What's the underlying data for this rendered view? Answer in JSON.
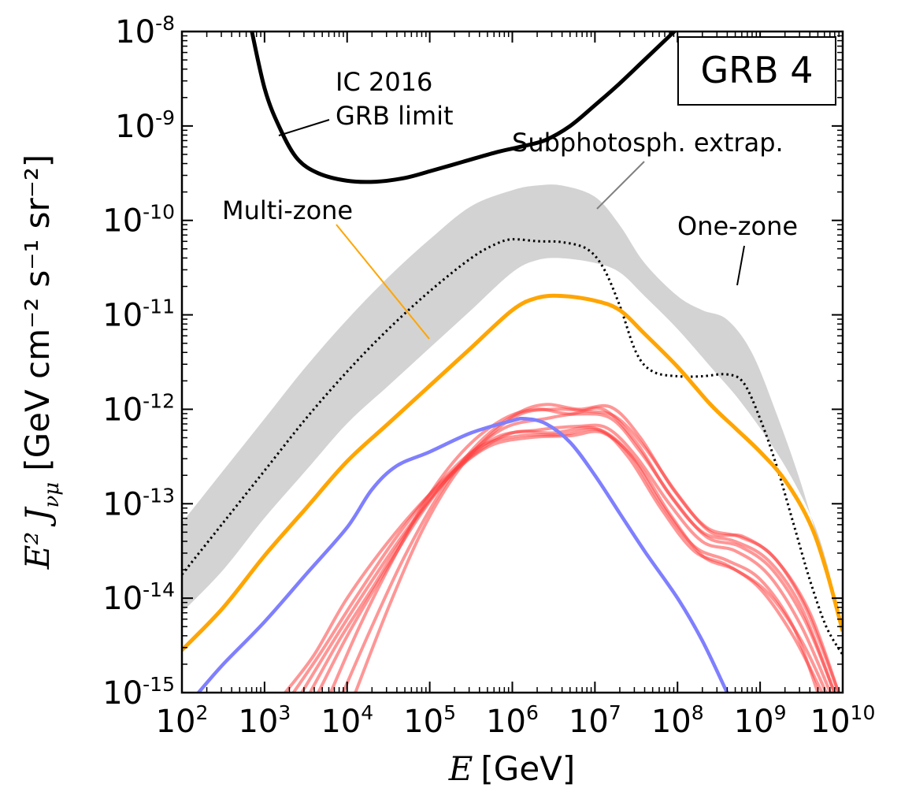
{
  "chart_data": {
    "type": "line",
    "title": "",
    "xscale": "log",
    "yscale": "log",
    "xlim": [
      100,
      10000000000
    ],
    "ylim": [
      1e-15,
      1e-08
    ],
    "xlabel": {
      "symbol": "E",
      "text": "[GeV]"
    },
    "ylabel": {
      "symbol": "E² J",
      "subscript": "νμ",
      "units": "[GeV cm⁻² s⁻¹ sr⁻²]"
    },
    "x_ticks": [
      {
        "value": 100,
        "base": "10",
        "exp": "2"
      },
      {
        "value": 1000,
        "base": "10",
        "exp": "3"
      },
      {
        "value": 10000,
        "base": "10",
        "exp": "4"
      },
      {
        "value": 100000,
        "base": "10",
        "exp": "5"
      },
      {
        "value": 1000000,
        "base": "10",
        "exp": "6"
      },
      {
        "value": 10000000,
        "base": "10",
        "exp": "7"
      },
      {
        "value": 100000000,
        "base": "10",
        "exp": "8"
      },
      {
        "value": 1000000000,
        "base": "10",
        "exp": "9"
      },
      {
        "value": 10000000000,
        "base": "10",
        "exp": "10"
      }
    ],
    "y_ticks": [
      {
        "value": 1e-08,
        "base": "10",
        "exp": "-8"
      },
      {
        "value": 1e-09,
        "base": "10",
        "exp": "-9"
      },
      {
        "value": 1e-10,
        "base": "10",
        "exp": "-10"
      },
      {
        "value": 1e-11,
        "base": "10",
        "exp": "-11"
      },
      {
        "value": 1e-12,
        "base": "10",
        "exp": "-12"
      },
      {
        "value": 1e-13,
        "base": "10",
        "exp": "-13"
      },
      {
        "value": 1e-14,
        "base": "10",
        "exp": "-14"
      },
      {
        "value": 1e-15,
        "base": "10",
        "exp": "-15"
      }
    ],
    "legend_box": {
      "text": "GRB 4",
      "placement": "top-right"
    },
    "annotations": {
      "ic_line1": "IC 2016",
      "ic_line2": "GRB limit",
      "subphoto": "Subphotosph. extrap.",
      "multizone": "Multi-zone",
      "onezone": "One-zone"
    },
    "colors": {
      "ic_limit": "#000000",
      "multizone": "#ffa500",
      "band": "#d3d3d3",
      "subphoto_text": "#808080",
      "blue": "#7f7fff",
      "red": "#ff4040",
      "onezone": "#000000"
    },
    "series": [
      {
        "name": "IC 2016 GRB limit",
        "style": "solid-black",
        "points": [
          [
            2.8,
            -7.8
          ],
          [
            3.0,
            -8.6
          ],
          [
            3.2,
            -9.05
          ],
          [
            3.4,
            -9.35
          ],
          [
            3.65,
            -9.5
          ],
          [
            4.0,
            -9.58
          ],
          [
            4.35,
            -9.59
          ],
          [
            4.7,
            -9.55
          ],
          [
            5.0,
            -9.48
          ],
          [
            5.4,
            -9.38
          ],
          [
            5.8,
            -9.28
          ],
          [
            6.1,
            -9.22
          ],
          [
            6.4,
            -9.15
          ],
          [
            6.7,
            -9.0
          ],
          [
            7.0,
            -8.78
          ],
          [
            7.3,
            -8.55
          ],
          [
            7.6,
            -8.3
          ],
          [
            7.9,
            -8.05
          ],
          [
            8.2,
            -7.8
          ]
        ]
      },
      {
        "name": "One-zone",
        "style": "dotted-black",
        "points": [
          [
            2.0,
            -13.75
          ],
          [
            2.5,
            -13.2
          ],
          [
            3.0,
            -12.65
          ],
          [
            3.5,
            -12.1
          ],
          [
            4.0,
            -11.6
          ],
          [
            4.5,
            -11.15
          ],
          [
            5.0,
            -10.75
          ],
          [
            5.5,
            -10.4
          ],
          [
            5.8,
            -10.25
          ],
          [
            6.0,
            -10.2
          ],
          [
            6.3,
            -10.22
          ],
          [
            6.6,
            -10.23
          ],
          [
            6.9,
            -10.3
          ],
          [
            7.1,
            -10.5
          ],
          [
            7.3,
            -10.9
          ],
          [
            7.5,
            -11.4
          ],
          [
            7.7,
            -11.6
          ],
          [
            8.0,
            -11.65
          ],
          [
            8.3,
            -11.65
          ],
          [
            8.6,
            -11.63
          ],
          [
            8.8,
            -11.72
          ],
          [
            9.0,
            -12.1
          ],
          [
            9.2,
            -12.6
          ],
          [
            9.4,
            -13.2
          ],
          [
            9.6,
            -13.8
          ],
          [
            9.8,
            -14.3
          ],
          [
            10.0,
            -14.6
          ]
        ]
      },
      {
        "name": "Multi-zone",
        "style": "solid-orange",
        "points": [
          [
            2.0,
            -14.55
          ],
          [
            2.5,
            -14.1
          ],
          [
            3.0,
            -13.55
          ],
          [
            3.5,
            -13.05
          ],
          [
            4.0,
            -12.55
          ],
          [
            4.5,
            -12.15
          ],
          [
            5.0,
            -11.75
          ],
          [
            5.5,
            -11.35
          ],
          [
            6.0,
            -10.95
          ],
          [
            6.3,
            -10.82
          ],
          [
            6.6,
            -10.8
          ],
          [
            7.0,
            -10.85
          ],
          [
            7.3,
            -10.95
          ],
          [
            7.6,
            -11.2
          ],
          [
            8.0,
            -11.55
          ],
          [
            8.4,
            -11.95
          ],
          [
            8.7,
            -12.2
          ],
          [
            9.0,
            -12.45
          ],
          [
            9.3,
            -12.75
          ],
          [
            9.6,
            -13.2
          ],
          [
            9.8,
            -13.7
          ],
          [
            10.0,
            -14.35
          ]
        ]
      },
      {
        "name": "Subphotosph. extrap. band",
        "style": "band-gray",
        "upper": [
          [
            2.0,
            -13.2
          ],
          [
            2.5,
            -12.65
          ],
          [
            3.0,
            -12.1
          ],
          [
            3.5,
            -11.55
          ],
          [
            4.0,
            -11.05
          ],
          [
            4.5,
            -10.6
          ],
          [
            5.0,
            -10.2
          ],
          [
            5.5,
            -9.85
          ],
          [
            6.0,
            -9.68
          ],
          [
            6.3,
            -9.63
          ],
          [
            6.6,
            -9.63
          ],
          [
            7.0,
            -9.75
          ],
          [
            7.3,
            -10.05
          ],
          [
            7.6,
            -10.45
          ],
          [
            8.0,
            -10.8
          ],
          [
            8.3,
            -10.95
          ],
          [
            8.6,
            -11.05
          ],
          [
            8.9,
            -11.4
          ],
          [
            9.2,
            -12.05
          ],
          [
            9.5,
            -12.8
          ],
          [
            9.8,
            -13.7
          ],
          [
            10.0,
            -14.35
          ]
        ],
        "lower": [
          [
            2.0,
            -14.15
          ],
          [
            2.5,
            -13.7
          ],
          [
            3.0,
            -13.15
          ],
          [
            3.5,
            -12.65
          ],
          [
            4.0,
            -12.15
          ],
          [
            4.5,
            -11.75
          ],
          [
            5.0,
            -11.35
          ],
          [
            5.5,
            -10.95
          ],
          [
            6.0,
            -10.55
          ],
          [
            6.3,
            -10.42
          ],
          [
            6.6,
            -10.4
          ],
          [
            7.0,
            -10.45
          ],
          [
            7.3,
            -10.55
          ],
          [
            7.6,
            -10.8
          ],
          [
            8.0,
            -11.15
          ],
          [
            8.4,
            -11.55
          ],
          [
            8.7,
            -11.85
          ],
          [
            9.0,
            -12.2
          ],
          [
            9.3,
            -12.6
          ],
          [
            9.6,
            -13.1
          ],
          [
            9.8,
            -13.6
          ],
          [
            10.0,
            -14.35
          ]
        ]
      },
      {
        "name": "Blue curve",
        "style": "solid-blue",
        "points": [
          [
            2.2,
            -15.0
          ],
          [
            2.5,
            -14.7
          ],
          [
            3.0,
            -14.25
          ],
          [
            3.5,
            -13.75
          ],
          [
            4.0,
            -13.25
          ],
          [
            4.3,
            -12.85
          ],
          [
            4.6,
            -12.6
          ],
          [
            5.0,
            -12.45
          ],
          [
            5.5,
            -12.25
          ],
          [
            6.0,
            -12.12
          ],
          [
            6.15,
            -12.1
          ],
          [
            6.4,
            -12.15
          ],
          [
            6.7,
            -12.35
          ],
          [
            7.0,
            -12.7
          ],
          [
            7.3,
            -13.1
          ],
          [
            7.6,
            -13.5
          ],
          [
            8.0,
            -14.0
          ],
          [
            8.3,
            -14.45
          ],
          [
            8.6,
            -15.0
          ]
        ]
      },
      {
        "name": "Red curves",
        "style": "solid-red-multiple",
        "curves": [
          [
            [
              3.25,
              -15.0
            ],
            [
              3.6,
              -14.6
            ],
            [
              4.0,
              -14.0
            ],
            [
              4.5,
              -13.4
            ],
            [
              5.0,
              -12.9
            ],
            [
              5.5,
              -12.5
            ],
            [
              6.0,
              -12.25
            ],
            [
              6.5,
              -12.25
            ],
            [
              7.0,
              -12.2
            ],
            [
              7.4,
              -12.45
            ],
            [
              7.8,
              -13.0
            ],
            [
              8.2,
              -13.45
            ],
            [
              8.6,
              -13.6
            ],
            [
              9.0,
              -13.8
            ],
            [
              9.4,
              -14.3
            ],
            [
              9.7,
              -15.0
            ]
          ],
          [
            [
              3.35,
              -15.0
            ],
            [
              3.7,
              -14.55
            ],
            [
              4.1,
              -14.0
            ],
            [
              4.6,
              -13.35
            ],
            [
              5.1,
              -12.8
            ],
            [
              5.6,
              -12.4
            ],
            [
              6.1,
              -12.28
            ],
            [
              6.6,
              -12.27
            ],
            [
              7.05,
              -12.22
            ],
            [
              7.4,
              -12.5
            ],
            [
              7.8,
              -13.05
            ],
            [
              8.2,
              -13.5
            ],
            [
              8.6,
              -13.65
            ],
            [
              9.0,
              -13.9
            ],
            [
              9.4,
              -14.4
            ],
            [
              9.75,
              -15.0
            ]
          ],
          [
            [
              3.45,
              -15.0
            ],
            [
              3.8,
              -14.5
            ],
            [
              4.2,
              -13.95
            ],
            [
              4.7,
              -13.3
            ],
            [
              5.2,
              -12.75
            ],
            [
              5.7,
              -12.4
            ],
            [
              6.2,
              -12.3
            ],
            [
              6.7,
              -12.28
            ],
            [
              7.1,
              -12.25
            ],
            [
              7.5,
              -12.55
            ],
            [
              7.9,
              -13.1
            ],
            [
              8.3,
              -13.55
            ],
            [
              8.7,
              -13.7
            ],
            [
              9.1,
              -13.95
            ],
            [
              9.5,
              -14.45
            ],
            [
              9.8,
              -15.0
            ]
          ],
          [
            [
              3.55,
              -15.0
            ],
            [
              3.9,
              -14.45
            ],
            [
              4.3,
              -13.9
            ],
            [
              4.8,
              -13.2
            ],
            [
              5.3,
              -12.65
            ],
            [
              5.8,
              -12.3
            ],
            [
              6.3,
              -12.22
            ],
            [
              6.8,
              -12.18
            ],
            [
              7.15,
              -12.2
            ],
            [
              7.5,
              -12.5
            ],
            [
              7.9,
              -13.0
            ],
            [
              8.3,
              -13.4
            ],
            [
              8.7,
              -13.5
            ],
            [
              9.1,
              -13.75
            ],
            [
              9.5,
              -14.3
            ],
            [
              9.85,
              -15.0
            ]
          ],
          [
            [
              3.65,
              -15.0
            ],
            [
              4.0,
              -14.4
            ],
            [
              4.4,
              -13.8
            ],
            [
              4.9,
              -13.1
            ],
            [
              5.4,
              -12.55
            ],
            [
              5.9,
              -12.2
            ],
            [
              6.4,
              -12.1
            ],
            [
              6.8,
              -12.05
            ],
            [
              7.2,
              -12.1
            ],
            [
              7.55,
              -12.45
            ],
            [
              7.95,
              -12.95
            ],
            [
              8.35,
              -13.35
            ],
            [
              8.75,
              -13.45
            ],
            [
              9.15,
              -13.7
            ],
            [
              9.55,
              -14.25
            ],
            [
              9.9,
              -15.0
            ]
          ],
          [
            [
              3.8,
              -15.0
            ],
            [
              4.15,
              -14.3
            ],
            [
              4.55,
              -13.6
            ],
            [
              5.0,
              -12.9
            ],
            [
              5.45,
              -12.4
            ],
            [
              5.9,
              -12.1
            ],
            [
              6.3,
              -12.0
            ],
            [
              6.7,
              -12.05
            ],
            [
              7.1,
              -12.0
            ],
            [
              7.5,
              -12.35
            ],
            [
              7.9,
              -12.9
            ],
            [
              8.3,
              -13.3
            ],
            [
              8.7,
              -13.4
            ],
            [
              9.1,
              -13.6
            ],
            [
              9.5,
              -14.1
            ],
            [
              9.9,
              -15.0
            ]
          ],
          [
            [
              3.95,
              -15.0
            ],
            [
              4.3,
              -14.3
            ],
            [
              4.7,
              -13.55
            ],
            [
              5.15,
              -12.85
            ],
            [
              5.6,
              -12.35
            ],
            [
              6.05,
              -12.05
            ],
            [
              6.4,
              -11.95
            ],
            [
              6.8,
              -12.0
            ],
            [
              7.2,
              -11.98
            ],
            [
              7.55,
              -12.3
            ],
            [
              7.95,
              -12.85
            ],
            [
              8.35,
              -13.25
            ],
            [
              8.75,
              -13.35
            ],
            [
              9.15,
              -13.55
            ],
            [
              9.55,
              -14.1
            ],
            [
              9.95,
              -15.0
            ]
          ],
          [
            [
              4.1,
              -15.0
            ],
            [
              4.5,
              -14.1
            ],
            [
              4.9,
              -13.3
            ],
            [
              5.3,
              -12.7
            ],
            [
              5.7,
              -12.3
            ],
            [
              6.1,
              -12.05
            ],
            [
              6.5,
              -12.0
            ],
            [
              6.9,
              -12.02
            ],
            [
              7.25,
              -12.08
            ],
            [
              7.6,
              -12.4
            ],
            [
              8.0,
              -12.9
            ],
            [
              8.4,
              -13.3
            ],
            [
              8.8,
              -13.35
            ],
            [
              9.2,
              -13.6
            ],
            [
              9.6,
              -14.15
            ],
            [
              9.95,
              -15.0
            ]
          ]
        ]
      }
    ]
  }
}
